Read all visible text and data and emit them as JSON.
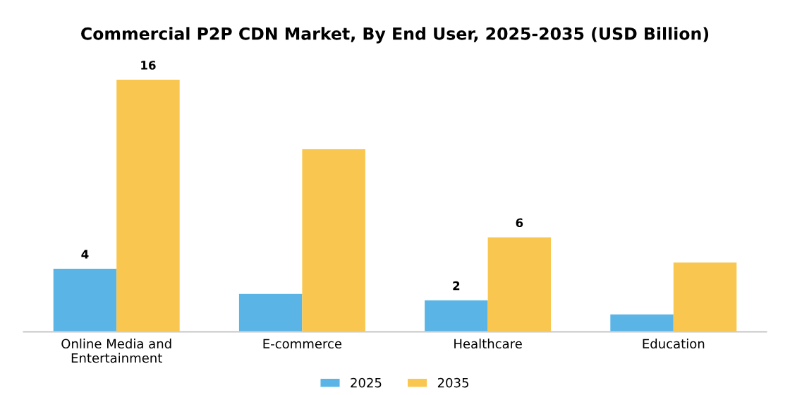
{
  "chart_data": {
    "type": "bar",
    "title": "Commercial P2P CDN Market, By End User, 2025-2035 (USD Billion)",
    "categories": [
      "Online Media and\nEntertainment",
      "E-commerce",
      "Healthcare",
      "Education"
    ],
    "series": [
      {
        "name": "2025",
        "color": "#5ab4e5",
        "values": [
          4,
          2.4,
          2,
          1.1
        ],
        "value_labels": [
          "4",
          null,
          "2",
          null
        ]
      },
      {
        "name": "2035",
        "color": "#f9c74f",
        "values": [
          16,
          11.6,
          6,
          4.4
        ],
        "value_labels": [
          "16",
          null,
          "6",
          null
        ]
      }
    ],
    "legend": "bottom"
  }
}
